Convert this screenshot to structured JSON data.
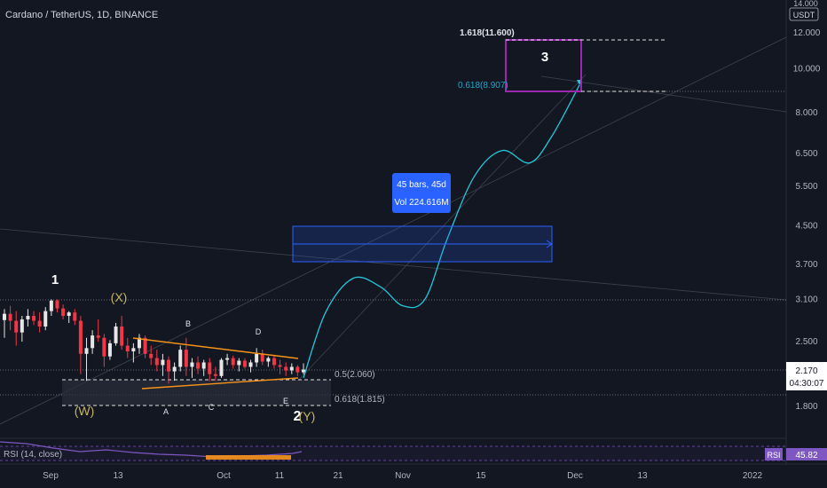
{
  "header": {
    "symbol_title": "Cardano / TetherUS, 1D, BINANCE"
  },
  "price_axis": {
    "currency": "USDT",
    "top_partial": "14.000",
    "ticks": [
      "12.000",
      "10.000",
      "8.000",
      "6.500",
      "5.500",
      "4.500",
      "3.700",
      "3.100",
      "2.500",
      "1.800"
    ],
    "tick_values": [
      12,
      10,
      8,
      6.5,
      5.5,
      4.5,
      3.7,
      3.1,
      2.5,
      1.8
    ],
    "current_price": "2.170",
    "countdown": "04:30:07"
  },
  "time_axis": {
    "labels": [
      "Sep",
      "13",
      "Oct",
      "11",
      "21",
      "Nov",
      "15",
      "Dec",
      "13",
      "2022"
    ]
  },
  "wave_labels": {
    "w1": "1",
    "x": "(X)",
    "w": "(W)",
    "b": "B",
    "a": "A",
    "c": "C",
    "d": "D",
    "e": "E",
    "w2": "2",
    "y": "(Y)",
    "w3": "3"
  },
  "fib_labels": {
    "fib_0_5": "0.5(2.060)",
    "fib_0_618_low": "0.618(1.815)",
    "fib_1_618": "1.618(11.600)",
    "fib_0_618_high": "0.618(8.907)"
  },
  "measure_tooltip": {
    "bars": "45 bars, 45d",
    "volume": "Vol 224.616M"
  },
  "rsi": {
    "label": "RSI (14, close)",
    "badge": "RSI",
    "value": "45.82"
  },
  "colors": {
    "background": "#131722",
    "up": "#e6e6e6",
    "down": "#f23645",
    "triangle": "#f7931a",
    "projection": "#26c6da",
    "target_box": "#9c27b0",
    "measure": "#2962ff",
    "rsi_line": "#7e57c2"
  },
  "chart_data": {
    "type": "candlestick",
    "title": "Cardano / TetherUS, 1D, BINANCE",
    "scale": "log",
    "ylim": [
      1.6,
      14
    ],
    "candles": [
      {
        "o": 2.79,
        "h": 2.95,
        "l": 2.55,
        "c": 2.88
      },
      {
        "o": 2.88,
        "h": 3.0,
        "l": 2.65,
        "c": 2.78
      },
      {
        "o": 2.78,
        "h": 2.92,
        "l": 2.45,
        "c": 2.62
      },
      {
        "o": 2.62,
        "h": 2.85,
        "l": 2.5,
        "c": 2.8
      },
      {
        "o": 2.8,
        "h": 2.95,
        "l": 2.7,
        "c": 2.85
      },
      {
        "o": 2.85,
        "h": 2.92,
        "l": 2.72,
        "c": 2.78
      },
      {
        "o": 2.78,
        "h": 2.9,
        "l": 2.62,
        "c": 2.7
      },
      {
        "o": 2.7,
        "h": 2.98,
        "l": 2.65,
        "c": 2.92
      },
      {
        "o": 2.92,
        "h": 3.1,
        "l": 2.85,
        "c": 3.08
      },
      {
        "o": 3.08,
        "h": 3.1,
        "l": 2.9,
        "c": 2.96
      },
      {
        "o": 2.96,
        "h": 3.02,
        "l": 2.8,
        "c": 2.85
      },
      {
        "o": 2.85,
        "h": 2.92,
        "l": 2.75,
        "c": 2.9
      },
      {
        "o": 2.9,
        "h": 2.95,
        "l": 2.72,
        "c": 2.78
      },
      {
        "o": 2.78,
        "h": 2.85,
        "l": 2.12,
        "c": 2.35
      },
      {
        "o": 2.35,
        "h": 2.55,
        "l": 2.05,
        "c": 2.42
      },
      {
        "o": 2.42,
        "h": 2.65,
        "l": 2.35,
        "c": 2.58
      },
      {
        "o": 2.58,
        "h": 2.8,
        "l": 2.5,
        "c": 2.55
      },
      {
        "o": 2.55,
        "h": 2.6,
        "l": 2.2,
        "c": 2.32
      },
      {
        "o": 2.32,
        "h": 2.52,
        "l": 2.28,
        "c": 2.48
      },
      {
        "o": 2.48,
        "h": 2.75,
        "l": 2.45,
        "c": 2.7
      },
      {
        "o": 2.7,
        "h": 2.85,
        "l": 2.4,
        "c": 2.45
      },
      {
        "o": 2.45,
        "h": 2.55,
        "l": 2.3,
        "c": 2.38
      },
      {
        "o": 2.38,
        "h": 2.48,
        "l": 2.25,
        "c": 2.42
      },
      {
        "o": 2.42,
        "h": 2.6,
        "l": 2.35,
        "c": 2.55
      },
      {
        "o": 2.55,
        "h": 2.58,
        "l": 2.3,
        "c": 2.35
      },
      {
        "o": 2.35,
        "h": 2.45,
        "l": 2.22,
        "c": 2.3
      },
      {
        "o": 2.3,
        "h": 2.4,
        "l": 2.15,
        "c": 2.22
      },
      {
        "o": 2.22,
        "h": 2.35,
        "l": 2.1,
        "c": 2.28
      },
      {
        "o": 2.28,
        "h": 2.32,
        "l": 2.02,
        "c": 2.15
      },
      {
        "o": 2.15,
        "h": 2.25,
        "l": 2.05,
        "c": 2.2
      },
      {
        "o": 2.2,
        "h": 2.45,
        "l": 2.15,
        "c": 2.4
      },
      {
        "o": 2.4,
        "h": 2.55,
        "l": 2.1,
        "c": 2.2
      },
      {
        "o": 2.2,
        "h": 2.3,
        "l": 2.08,
        "c": 2.25
      },
      {
        "o": 2.25,
        "h": 2.32,
        "l": 2.12,
        "c": 2.18
      },
      {
        "o": 2.18,
        "h": 2.28,
        "l": 2.1,
        "c": 2.25
      },
      {
        "o": 2.25,
        "h": 2.3,
        "l": 2.05,
        "c": 2.12
      },
      {
        "o": 2.12,
        "h": 2.2,
        "l": 2.05,
        "c": 2.1
      },
      {
        "o": 2.1,
        "h": 2.3,
        "l": 2.08,
        "c": 2.28
      },
      {
        "o": 2.28,
        "h": 2.35,
        "l": 2.22,
        "c": 2.3
      },
      {
        "o": 2.3,
        "h": 2.33,
        "l": 2.18,
        "c": 2.22
      },
      {
        "o": 2.22,
        "h": 2.3,
        "l": 2.15,
        "c": 2.27
      },
      {
        "o": 2.27,
        "h": 2.3,
        "l": 2.18,
        "c": 2.2
      },
      {
        "o": 2.2,
        "h": 2.28,
        "l": 2.14,
        "c": 2.25
      },
      {
        "o": 2.25,
        "h": 2.42,
        "l": 2.2,
        "c": 2.35
      },
      {
        "o": 2.35,
        "h": 2.4,
        "l": 2.22,
        "c": 2.26
      },
      {
        "o": 2.26,
        "h": 2.32,
        "l": 2.2,
        "c": 2.3
      },
      {
        "o": 2.3,
        "h": 2.34,
        "l": 2.18,
        "c": 2.22
      },
      {
        "o": 2.22,
        "h": 2.28,
        "l": 2.12,
        "c": 2.2
      },
      {
        "o": 2.2,
        "h": 2.25,
        "l": 2.1,
        "c": 2.16
      },
      {
        "o": 2.16,
        "h": 2.24,
        "l": 2.12,
        "c": 2.2
      },
      {
        "o": 2.2,
        "h": 2.22,
        "l": 2.1,
        "c": 2.14
      },
      {
        "o": 2.14,
        "h": 2.24,
        "l": 2.12,
        "c": 2.17
      }
    ],
    "projection": [
      [
        0,
        2.08
      ],
      [
        8,
        2.9
      ],
      [
        18,
        3.45
      ],
      [
        28,
        3.3
      ],
      [
        36,
        3.0
      ],
      [
        44,
        3.1
      ],
      [
        52,
        4.2
      ],
      [
        62,
        5.8
      ],
      [
        72,
        6.6
      ],
      [
        82,
        6.2
      ],
      [
        90,
        7.1
      ],
      [
        100,
        9.2
      ]
    ],
    "fib_levels": {
      "0.5": 2.06,
      "0.618": 1.815,
      "1.618": 11.6,
      "0.618_ext": 8.907
    },
    "measure": {
      "bars": 45,
      "days": 45,
      "volume": "224.616M"
    },
    "rsi_value": 45.82
  }
}
